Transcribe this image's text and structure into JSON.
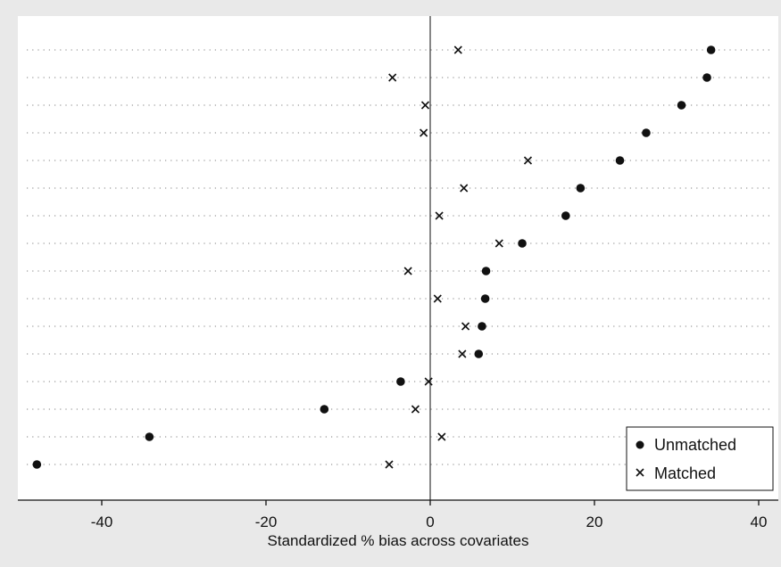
{
  "chart_data": {
    "type": "scatter",
    "title": "",
    "xlabel": "Standardized % bias across covariates",
    "ylabel": "",
    "xlim": [
      -50,
      40
    ],
    "x_ticks": [
      -40,
      -20,
      0,
      20,
      40
    ],
    "x_tick_labels": [
      "-40",
      "-20",
      "0",
      "20",
      "40"
    ],
    "reference_line_x": 0,
    "grid": "horizontal dotted",
    "legend_position": "bottom-right",
    "rows": 16,
    "series": [
      {
        "name": "Unmatched",
        "marker": "dot",
        "values": [
          34.2,
          33.7,
          30.6,
          26.3,
          23.1,
          18.3,
          16.5,
          11.2,
          6.8,
          6.7,
          6.3,
          5.9,
          -3.6,
          -12.9,
          -34.2,
          -47.9
        ]
      },
      {
        "name": "Matched",
        "marker": "x",
        "values": [
          3.4,
          -4.6,
          -0.6,
          -0.8,
          11.9,
          4.1,
          1.1,
          8.4,
          -2.7,
          0.9,
          4.3,
          3.9,
          -0.2,
          -1.8,
          1.4,
          -5.0
        ]
      }
    ],
    "colors": {
      "plot_background": "#ffffff",
      "outer_background": "#e9e9e9",
      "markers": "#111111"
    }
  }
}
